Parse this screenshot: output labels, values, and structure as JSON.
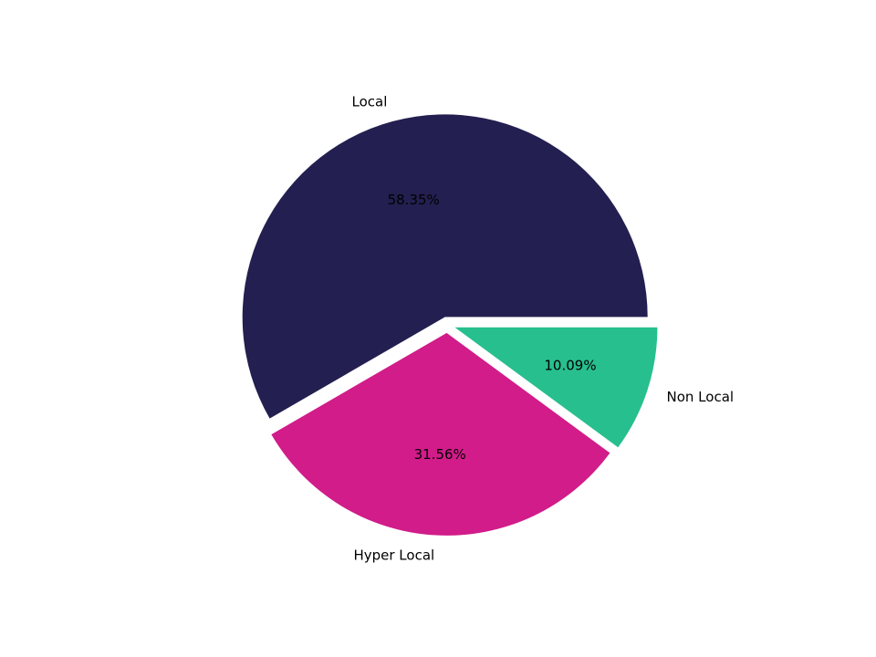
{
  "chart_data": {
    "type": "pie",
    "title": "",
    "labels": [
      "Local",
      "Hyper Local",
      "Non Local"
    ],
    "values": [
      58.35,
      31.56,
      10.09
    ],
    "percent_labels": [
      "58.35%",
      "31.56%",
      "10.09%"
    ],
    "colors": [
      "#231f50",
      "#d11c8a",
      "#27bf8d"
    ],
    "start_angle_deg": 0,
    "direction": "counterclockwise",
    "explode": [
      0.04,
      0.04,
      0.04
    ],
    "pct_distance": 0.6,
    "label_distance": 1.1,
    "background": "#ffffff",
    "text_color": "#000000",
    "legend": "none",
    "grid": false
  }
}
